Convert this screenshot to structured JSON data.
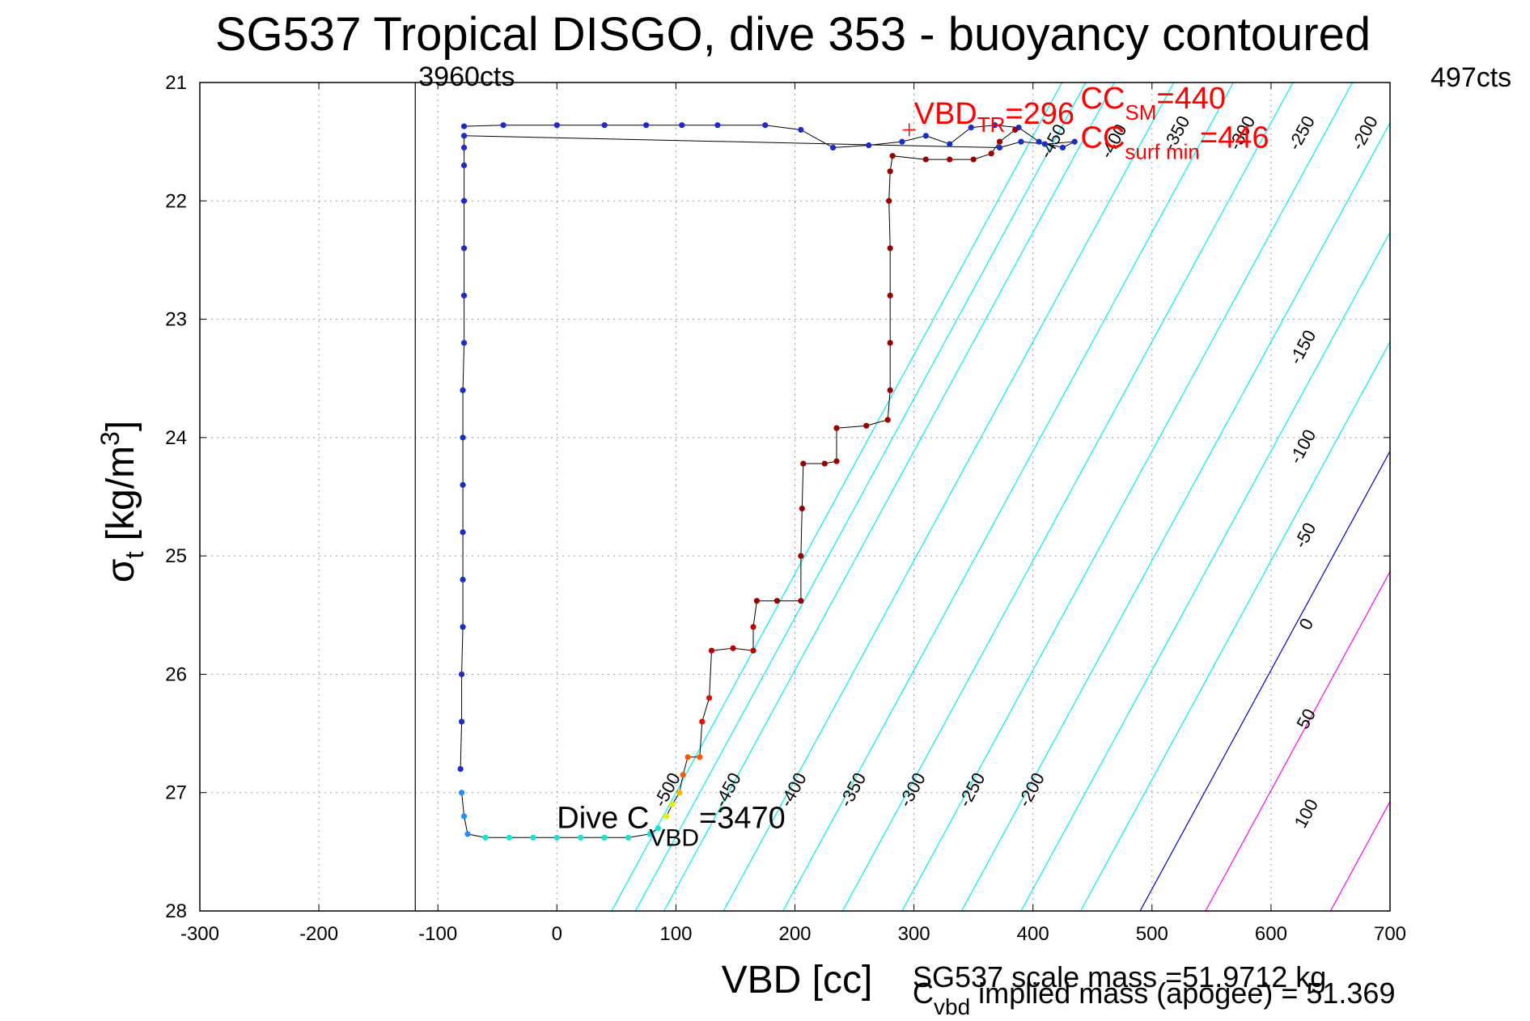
{
  "chart_data": {
    "type": "scatter",
    "title": "SG537 Tropical DISGO, dive 353 - buoyancy contoured",
    "xlabel": "VBD [cc]",
    "ylabel_main": "σ",
    "ylabel_sub": "t",
    "ylabel_unit": " [kg/m",
    "ylabel_sup": "3",
    "ylabel_close": "]",
    "xlim": [
      -300,
      700
    ],
    "ylim": [
      28,
      21
    ],
    "y_reversed": true,
    "grid": true,
    "x_ticks": [
      -300,
      -200,
      -100,
      0,
      100,
      200,
      300,
      400,
      500,
      600,
      700
    ],
    "y_ticks": [
      21,
      22,
      23,
      24,
      25,
      26,
      27,
      28
    ],
    "vline": {
      "x": -119,
      "label": "3960cts"
    },
    "right_top_label": "497cts",
    "contour_colors": {
      "negative": "#00eeee",
      "zero": "#0000cc",
      "positive": "#ff00ff"
    },
    "contours": [
      {
        "level": -500,
        "label": "-500",
        "x0_at_28": 46,
        "label_pos": [
          97,
          27.0
        ]
      },
      {
        "level": -450,
        "label": "-450",
        "x0_at_28": 66,
        "label_pos": [
          148,
          27.0
        ]
      },
      {
        "level": -400,
        "label": "-400",
        "x0_at_28": 90,
        "label_pos": [
          203,
          27.0
        ]
      },
      {
        "level": -350,
        "label": "-350",
        "x0_at_28": 140,
        "label_pos": [
          253,
          27.0
        ]
      },
      {
        "level": -300,
        "label": "-300",
        "x0_at_28": 190,
        "label_pos": [
          303,
          27.0
        ]
      },
      {
        "level": -250,
        "label": "-250",
        "x0_at_28": 240,
        "label_pos": [
          353,
          27.0
        ]
      },
      {
        "level": -200,
        "label": "-200",
        "x0_at_28": 290,
        "label_pos": [
          403,
          27.0
        ]
      },
      {
        "level": -150,
        "label": "-150",
        "x0_at_28": 340,
        "label_pos": [
          631,
          23.26
        ]
      },
      {
        "level": -100,
        "label": "-100",
        "x0_at_28": 390,
        "label_pos": [
          631,
          24.1
        ]
      },
      {
        "level": -50,
        "label": "-50",
        "x0_at_28": 440,
        "label_pos": [
          633,
          24.85
        ]
      },
      {
        "level": 0,
        "label": "0",
        "x0_at_28": 490,
        "label_pos": [
          634,
          25.6
        ]
      },
      {
        "level": 50,
        "label": "50",
        "x0_at_28": 545,
        "label_pos": [
          634,
          26.4
        ]
      },
      {
        "level": 100,
        "label": "100",
        "x0_at_28": 650,
        "label_pos": [
          634,
          27.2
        ]
      }
    ],
    "top_contour_labels": [
      {
        "label": "-450",
        "x": 421,
        "y": 21.52
      },
      {
        "label": "-400",
        "x": 472,
        "y": 21.52
      },
      {
        "label": "-350",
        "x": 525,
        "y": 21.45
      },
      {
        "label": "-300",
        "x": 580,
        "y": 21.45
      },
      {
        "label": "-250",
        "x": 630,
        "y": 21.45
      },
      {
        "label": "-200",
        "x": 683,
        "y": 21.45
      }
    ],
    "contour_slope_sigma_per_cc": 0.0185,
    "blue_profile": [
      [
        -78,
        21.37
      ],
      [
        -45,
        21.36
      ],
      [
        0,
        21.36
      ],
      [
        40,
        21.36
      ],
      [
        75,
        21.36
      ],
      [
        105,
        21.36
      ],
      [
        135,
        21.36
      ],
      [
        175,
        21.36
      ],
      [
        205,
        21.4
      ],
      [
        232,
        21.55
      ],
      [
        262,
        21.53
      ],
      [
        290,
        21.5
      ],
      [
        310,
        21.45
      ],
      [
        330,
        21.52
      ],
      [
        348,
        21.38
      ],
      [
        368,
        21.36
      ],
      [
        388,
        21.38
      ],
      [
        405,
        21.5
      ],
      [
        425,
        21.55
      ],
      [
        435,
        21.5
      ],
      [
        410,
        21.52
      ],
      [
        390,
        21.5
      ],
      [
        372,
        21.55
      ],
      [
        -78,
        21.45
      ],
      [
        -78,
        21.55
      ],
      [
        -78,
        21.7
      ],
      [
        -78,
        22.0
      ],
      [
        -78,
        22.4
      ],
      [
        -78,
        22.8
      ],
      [
        -78,
        23.2
      ],
      [
        -79,
        23.6
      ],
      [
        -79,
        24.0
      ],
      [
        -79,
        24.4
      ],
      [
        -79,
        24.8
      ],
      [
        -79,
        25.2
      ],
      [
        -79,
        25.6
      ],
      [
        -80,
        26.0
      ],
      [
        -80,
        26.4
      ],
      [
        -81,
        26.8
      ]
    ],
    "cyan_profile": [
      [
        -80,
        27.0
      ],
      [
        -78,
        27.2
      ],
      [
        -75,
        27.35
      ],
      [
        -60,
        27.38
      ],
      [
        -40,
        27.38
      ],
      [
        -20,
        27.38
      ],
      [
        0,
        27.38
      ],
      [
        20,
        27.38
      ],
      [
        40,
        27.38
      ],
      [
        60,
        27.38
      ],
      [
        78,
        27.35
      ],
      [
        85,
        27.3
      ]
    ],
    "red_profile": [
      [
        92,
        27.2
      ],
      [
        97,
        27.1
      ],
      [
        103,
        27.0
      ],
      [
        106,
        26.85
      ],
      [
        110,
        26.7
      ],
      [
        120,
        26.7
      ],
      [
        122,
        26.4
      ],
      [
        128,
        26.2
      ],
      [
        130,
        25.8
      ],
      [
        148,
        25.78
      ],
      [
        165,
        25.8
      ],
      [
        165,
        25.6
      ],
      [
        168,
        25.38
      ],
      [
        185,
        25.38
      ],
      [
        205,
        25.38
      ],
      [
        205,
        25.0
      ],
      [
        206,
        24.6
      ],
      [
        207,
        24.22
      ],
      [
        225,
        24.22
      ],
      [
        235,
        24.2
      ],
      [
        235,
        23.92
      ],
      [
        260,
        23.9
      ],
      [
        278,
        23.85
      ],
      [
        280,
        23.6
      ],
      [
        280,
        23.2
      ],
      [
        280,
        22.8
      ],
      [
        280,
        22.4
      ],
      [
        279,
        22.0
      ],
      [
        280,
        21.75
      ],
      [
        282,
        21.62
      ],
      [
        310,
        21.65
      ],
      [
        330,
        21.65
      ],
      [
        350,
        21.65
      ],
      [
        365,
        21.6
      ],
      [
        372,
        21.5
      ],
      [
        385,
        21.4
      ]
    ],
    "text_annotations": {
      "vbd_tr_pre": "VBD",
      "vbd_tr_sub": "TR",
      "vbd_tr_post": "=296",
      "cc_sm_pre": "CC",
      "cc_sm_sub": "SM",
      "cc_sm_post": "=440",
      "cc_surf_pre": "CC",
      "cc_surf_sub": "surf min",
      "cc_surf_post": "=446",
      "dive_c_pre": "Dive C",
      "dive_c_sub": "VBD",
      "dive_c_post": "=3470",
      "scale_mass": "SG537 scale mass =51.9712 kg",
      "implied_pre": "C",
      "implied_sub": "vbd",
      "implied_post": " implied mass (apogee) = 51.369"
    },
    "annotation_positions": {
      "vbd_tr": [
        300,
        21.35
      ],
      "cc_sm": [
        440,
        21.22
      ],
      "cc_surf": [
        440,
        21.55
      ],
      "dive_c": [
        0,
        27.3
      ]
    },
    "text_color_red": "#ff0000",
    "text_color_black": "#000000"
  }
}
